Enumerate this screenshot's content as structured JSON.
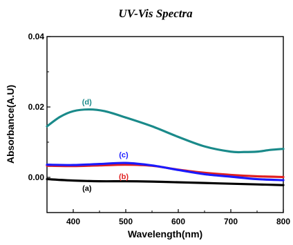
{
  "chart_data": {
    "type": "line",
    "title": "UV-Vis Spectra",
    "xlabel": "Wavelength(nm)",
    "ylabel": "Absorbance(A.U)",
    "xlim": [
      350,
      800
    ],
    "ylim": [
      -0.01,
      0.04
    ],
    "xticks": [
      400,
      500,
      600,
      700,
      800
    ],
    "yticks": [
      0.0,
      0.02,
      0.04
    ],
    "ytick_labels": [
      "0.00",
      "0.02",
      "0.04"
    ],
    "grid": false,
    "legend": "none",
    "series": [
      {
        "name": "(a)",
        "color": "#000000",
        "x": [
          350,
          400,
          450,
          500,
          550,
          600,
          650,
          700,
          750,
          800
        ],
        "y": [
          -0.0005,
          -0.0009,
          -0.0011,
          -0.0011,
          -0.0012,
          -0.0014,
          -0.0016,
          -0.0018,
          -0.002,
          -0.0022
        ]
      },
      {
        "name": "(b)",
        "color": "#e02020",
        "x": [
          350,
          400,
          450,
          500,
          550,
          600,
          650,
          700,
          750,
          800
        ],
        "y": [
          0.0033,
          0.0032,
          0.0034,
          0.0036,
          0.0033,
          0.0022,
          0.0013,
          0.0007,
          0.0003,
          0.0001
        ]
      },
      {
        "name": "(c)",
        "color": "#1a1aff",
        "x": [
          350,
          400,
          450,
          500,
          550,
          600,
          650,
          700,
          750,
          800
        ],
        "y": [
          0.0036,
          0.0035,
          0.0038,
          0.0041,
          0.0034,
          0.0021,
          0.0009,
          0.0002,
          -0.0005,
          -0.0008
        ]
      },
      {
        "name": "(d)",
        "color": "#1a8a8a",
        "x": [
          350,
          375,
          400,
          430,
          460,
          500,
          550,
          600,
          650,
          700,
          725,
          750,
          775,
          800
        ],
        "y": [
          0.0145,
          0.0172,
          0.0188,
          0.0193,
          0.0188,
          0.017,
          0.0145,
          0.0115,
          0.0088,
          0.0073,
          0.0072,
          0.0073,
          0.0078,
          0.0081
        ]
      }
    ]
  }
}
